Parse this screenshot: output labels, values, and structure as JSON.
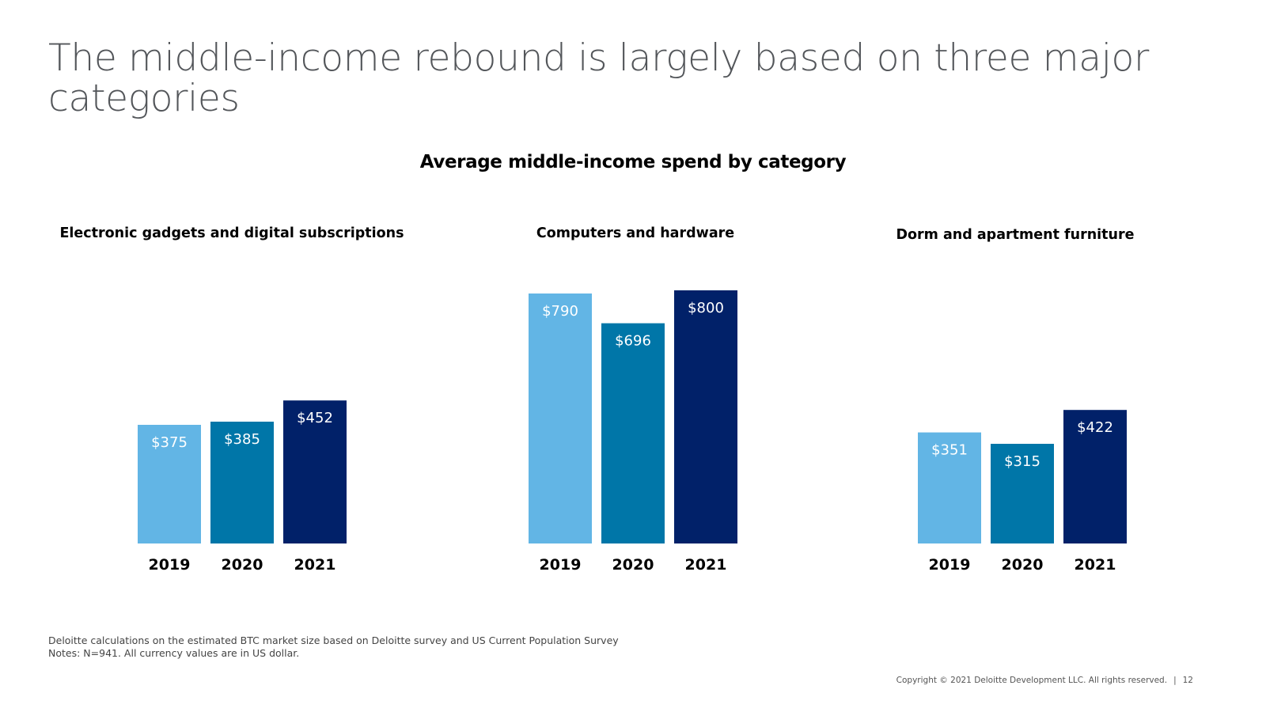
{
  "slide": {
    "title": "The middle-income rebound is largely based on three major categories",
    "subtitle": "Average middle-income spend by category",
    "footnote_source": "Deloitte calculations on the estimated BTC market size based on Deloitte survey and US Current Population Survey",
    "footnote_notes": "Notes: N=941. All currency values are in US dollar.",
    "copyright": "Copyright © 2021 Deloitte Development LLC. All rights reserved.",
    "page_number": "12"
  },
  "colors": {
    "2019": "#62b5e5",
    "2020": "#0076a8",
    "2021": "#012169"
  },
  "chart_data": [
    {
      "type": "bar",
      "title": "Electronic gadgets and digital subscriptions",
      "categories": [
        "2019",
        "2020",
        "2021"
      ],
      "values": [
        375,
        385,
        452
      ],
      "labels": [
        "$375",
        "$385",
        "$452"
      ],
      "ylabel": "",
      "xlabel": "",
      "ylim": [
        0,
        800
      ]
    },
    {
      "type": "bar",
      "title": "Computers and hardware",
      "categories": [
        "2019",
        "2020",
        "2021"
      ],
      "values": [
        790,
        696,
        800
      ],
      "labels": [
        "$790",
        "$696",
        "$800"
      ],
      "ylabel": "",
      "xlabel": "",
      "ylim": [
        0,
        800
      ]
    },
    {
      "type": "bar",
      "title": "Dorm and apartment furniture",
      "categories": [
        "2019",
        "2020",
        "2021"
      ],
      "values": [
        351,
        315,
        422
      ],
      "labels": [
        "$351",
        "$315",
        "$422"
      ],
      "ylabel": "",
      "xlabel": "",
      "ylim": [
        0,
        800
      ]
    }
  ]
}
